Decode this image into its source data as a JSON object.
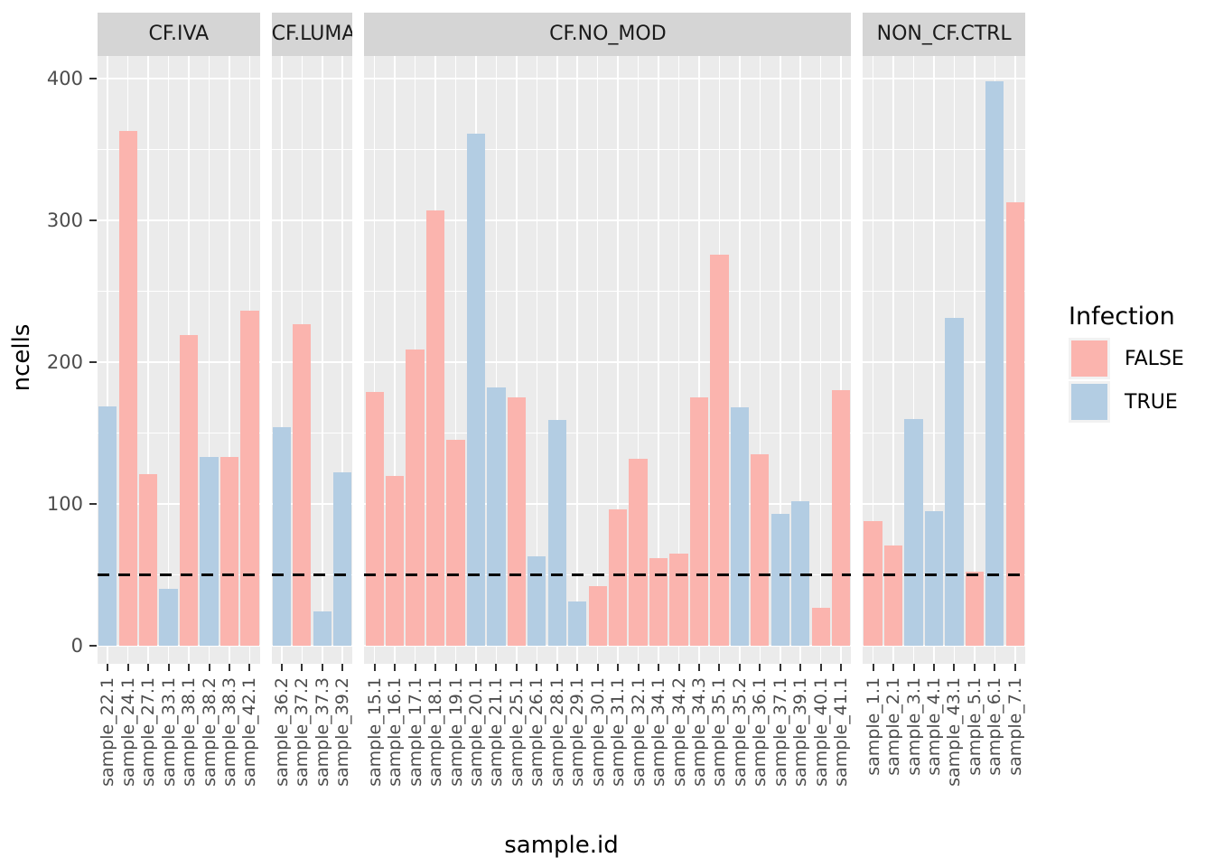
{
  "chart_data": {
    "type": "bar",
    "title": "",
    "xlabel": "sample.id",
    "ylabel": "ncells",
    "ylim": [
      0,
      400
    ],
    "yticks": [
      0,
      100,
      200,
      300,
      400
    ],
    "grid": "on",
    "threshold_line": {
      "y": 50,
      "style": "dashed",
      "color": "#000000"
    },
    "legend": {
      "title": "Infection",
      "position": "right",
      "entries": [
        {
          "label": "FALSE",
          "color": "#FBB4AE"
        },
        {
          "label": "TRUE",
          "color": "#B3CDE3"
        }
      ]
    },
    "colors": {
      "FALSE": "#FBB4AE",
      "TRUE": "#B3CDE3",
      "panel_bg": "#EBEBEB",
      "strip_bg": "#D5D5D5",
      "gridline": "#FFFFFF"
    },
    "facets": [
      {
        "label": "CF.IVA",
        "bars": [
          {
            "id": "sample_22.1",
            "infection": "TRUE",
            "ncells": 169
          },
          {
            "id": "sample_24.1",
            "infection": "FALSE",
            "ncells": 363
          },
          {
            "id": "sample_27.1",
            "infection": "FALSE",
            "ncells": 121
          },
          {
            "id": "sample_33.1",
            "infection": "TRUE",
            "ncells": 40
          },
          {
            "id": "sample_38.1",
            "infection": "FALSE",
            "ncells": 219
          },
          {
            "id": "sample_38.2",
            "infection": "TRUE",
            "ncells": 133
          },
          {
            "id": "sample_38.3",
            "infection": "FALSE",
            "ncells": 133
          },
          {
            "id": "sample_42.1",
            "infection": "FALSE",
            "ncells": 236
          }
        ]
      },
      {
        "label": "CF.LUMA_IVA",
        "bars": [
          {
            "id": "sample_36.2",
            "infection": "TRUE",
            "ncells": 154
          },
          {
            "id": "sample_37.2",
            "infection": "FALSE",
            "ncells": 227
          },
          {
            "id": "sample_37.3",
            "infection": "TRUE",
            "ncells": 24
          },
          {
            "id": "sample_39.2",
            "infection": "TRUE",
            "ncells": 122
          }
        ]
      },
      {
        "label": "CF.NO_MOD",
        "bars": [
          {
            "id": "sample_15.1",
            "infection": "FALSE",
            "ncells": 179
          },
          {
            "id": "sample_16.1",
            "infection": "FALSE",
            "ncells": 120
          },
          {
            "id": "sample_17.1",
            "infection": "FALSE",
            "ncells": 209
          },
          {
            "id": "sample_18.1",
            "infection": "FALSE",
            "ncells": 307
          },
          {
            "id": "sample_19.1",
            "infection": "FALSE",
            "ncells": 145
          },
          {
            "id": "sample_20.1",
            "infection": "TRUE",
            "ncells": 361
          },
          {
            "id": "sample_21.1",
            "infection": "TRUE",
            "ncells": 182
          },
          {
            "id": "sample_25.1",
            "infection": "FALSE",
            "ncells": 175
          },
          {
            "id": "sample_26.1",
            "infection": "TRUE",
            "ncells": 63
          },
          {
            "id": "sample_28.1",
            "infection": "TRUE",
            "ncells": 159
          },
          {
            "id": "sample_29.1",
            "infection": "TRUE",
            "ncells": 31
          },
          {
            "id": "sample_30.1",
            "infection": "FALSE",
            "ncells": 42
          },
          {
            "id": "sample_31.1",
            "infection": "FALSE",
            "ncells": 96
          },
          {
            "id": "sample_32.1",
            "infection": "FALSE",
            "ncells": 132
          },
          {
            "id": "sample_34.1",
            "infection": "FALSE",
            "ncells": 62
          },
          {
            "id": "sample_34.2",
            "infection": "FALSE",
            "ncells": 65
          },
          {
            "id": "sample_34.3",
            "infection": "FALSE",
            "ncells": 175
          },
          {
            "id": "sample_35.1",
            "infection": "FALSE",
            "ncells": 276
          },
          {
            "id": "sample_35.2",
            "infection": "TRUE",
            "ncells": 168
          },
          {
            "id": "sample_36.1",
            "infection": "FALSE",
            "ncells": 135
          },
          {
            "id": "sample_37.1",
            "infection": "TRUE",
            "ncells": 93
          },
          {
            "id": "sample_39.1",
            "infection": "TRUE",
            "ncells": 102
          },
          {
            "id": "sample_40.1",
            "infection": "FALSE",
            "ncells": 27
          },
          {
            "id": "sample_41.1",
            "infection": "FALSE",
            "ncells": 180
          }
        ]
      },
      {
        "label": "NON_CF.CTRL",
        "bars": [
          {
            "id": "sample_1.1",
            "infection": "FALSE",
            "ncells": 88
          },
          {
            "id": "sample_2.1",
            "infection": "FALSE",
            "ncells": 71
          },
          {
            "id": "sample_3.1",
            "infection": "TRUE",
            "ncells": 160
          },
          {
            "id": "sample_4.1",
            "infection": "TRUE",
            "ncells": 95
          },
          {
            "id": "sample_43.1",
            "infection": "TRUE",
            "ncells": 231
          },
          {
            "id": "sample_5.1",
            "infection": "FALSE",
            "ncells": 52
          },
          {
            "id": "sample_6.1",
            "infection": "TRUE",
            "ncells": 398
          },
          {
            "id": "sample_7.1",
            "infection": "FALSE",
            "ncells": 313
          }
        ]
      }
    ]
  }
}
